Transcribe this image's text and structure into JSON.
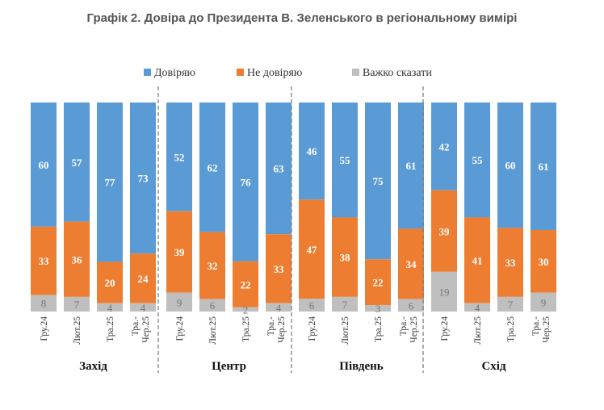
{
  "title": "Графік 2. Довіра до Президента В. Зеленського в регіональному вимірі",
  "chart_data": {
    "type": "bar",
    "stacked": true,
    "title": "Графік 2. Довіра до Президента В. Зеленського в регіональному вимірі",
    "ylim": [
      0,
      100
    ],
    "legend_position": "top-center",
    "series": [
      {
        "name": "Довіряю",
        "color": "#5B9BD5"
      },
      {
        "name": "Не довіряю",
        "color": "#ED7D31"
      },
      {
        "name": "Важко сказати",
        "color": "#BFBFBF"
      }
    ],
    "groups": [
      {
        "name": "Захід",
        "categories": [
          {
            "label": "Гру.24",
            "values": [
              60,
              33,
              8
            ]
          },
          {
            "label": "Лют.25",
            "values": [
              57,
              36,
              7
            ]
          },
          {
            "label": "Тра.25",
            "values": [
              77,
              20,
              4
            ]
          },
          {
            "label": "Тра.-Чер.25",
            "values": [
              73,
              24,
              4
            ]
          }
        ]
      },
      {
        "name": "Центр",
        "categories": [
          {
            "label": "Гру.24",
            "values": [
              52,
              39,
              9
            ]
          },
          {
            "label": "Лют.25",
            "values": [
              62,
              32,
              6
            ]
          },
          {
            "label": "Тра.25",
            "values": [
              76,
              22,
              2
            ]
          },
          {
            "label": "Тра.-Чер.25",
            "values": [
              63,
              33,
              4
            ]
          }
        ]
      },
      {
        "name": "Південь",
        "categories": [
          {
            "label": "Гру.24",
            "values": [
              46,
              47,
              6
            ]
          },
          {
            "label": "Лют.25",
            "values": [
              55,
              38,
              7
            ]
          },
          {
            "label": "Тра.25",
            "values": [
              75,
              22,
              3
            ]
          },
          {
            "label": "Тра.-Чер.25",
            "values": [
              61,
              34,
              6
            ]
          }
        ]
      },
      {
        "name": "Схід",
        "categories": [
          {
            "label": "Гру.24",
            "values": [
              42,
              39,
              19
            ]
          },
          {
            "label": "Лют.25",
            "values": [
              55,
              41,
              4
            ]
          },
          {
            "label": "Тра.25",
            "values": [
              60,
              33,
              7
            ]
          },
          {
            "label": "Тра.-Чер.25",
            "values": [
              61,
              30,
              9
            ]
          }
        ]
      }
    ]
  }
}
